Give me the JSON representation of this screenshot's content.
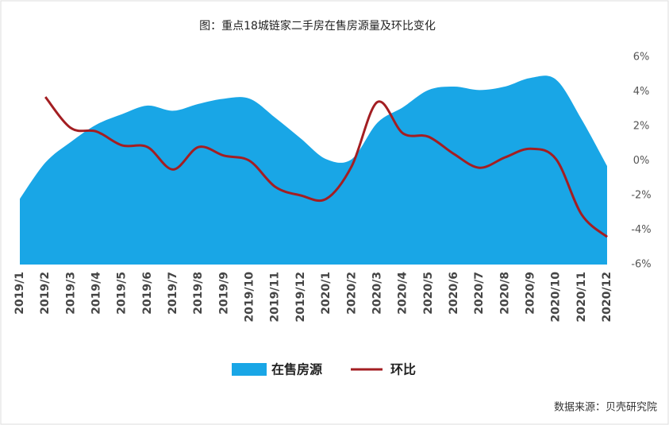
{
  "chart_data": {
    "type": "area-line",
    "title": "图：重点18城链家二手房在售房源量及环比变化",
    "source": "数据来源：贝壳研究院",
    "categories": [
      "2019/1",
      "2019/2",
      "2019/3",
      "2019/4",
      "2019/5",
      "2019/6",
      "2019/7",
      "2019/8",
      "2019/9",
      "2019/10",
      "2019/11",
      "2019/12",
      "2020/1",
      "2020/2",
      "2020/3",
      "2020/4",
      "2020/5",
      "2020/6",
      "2020/7",
      "2020/8",
      "2020/9",
      "2020/10",
      "2020/11",
      "2020/12"
    ],
    "series": [
      {
        "name": "在售房源",
        "kind": "area",
        "color": "#19a6e6",
        "values": [
          -2.2,
          -0.1,
          1.1,
          2.1,
          2.7,
          3.2,
          2.9,
          3.3,
          3.6,
          3.6,
          2.5,
          1.3,
          0.1,
          0.1,
          2.2,
          3.1,
          4.1,
          4.3,
          4.1,
          4.3,
          4.8,
          4.7,
          2.4,
          -0.3
        ]
      },
      {
        "name": "环比",
        "kind": "line",
        "color": "#a31e22",
        "values": [
          null,
          3.7,
          1.9,
          1.7,
          0.9,
          0.8,
          -0.5,
          0.8,
          0.3,
          0.0,
          -1.5,
          -2.0,
          -2.2,
          -0.3,
          3.4,
          1.6,
          1.4,
          0.4,
          -0.4,
          0.2,
          0.7,
          0.1,
          -3.1,
          -4.4
        ]
      }
    ],
    "ylim": [
      -6,
      6
    ],
    "yticks": [
      {
        "value": 6,
        "label": "6%"
      },
      {
        "value": 4,
        "label": "4%"
      },
      {
        "value": 2,
        "label": "2%"
      },
      {
        "value": 0,
        "label": "0%"
      },
      {
        "value": -2,
        "label": "-2%"
      },
      {
        "value": -4,
        "label": "-4%"
      },
      {
        "value": -6,
        "label": "-6%"
      }
    ],
    "y_axis_side": "right",
    "grid": false
  }
}
